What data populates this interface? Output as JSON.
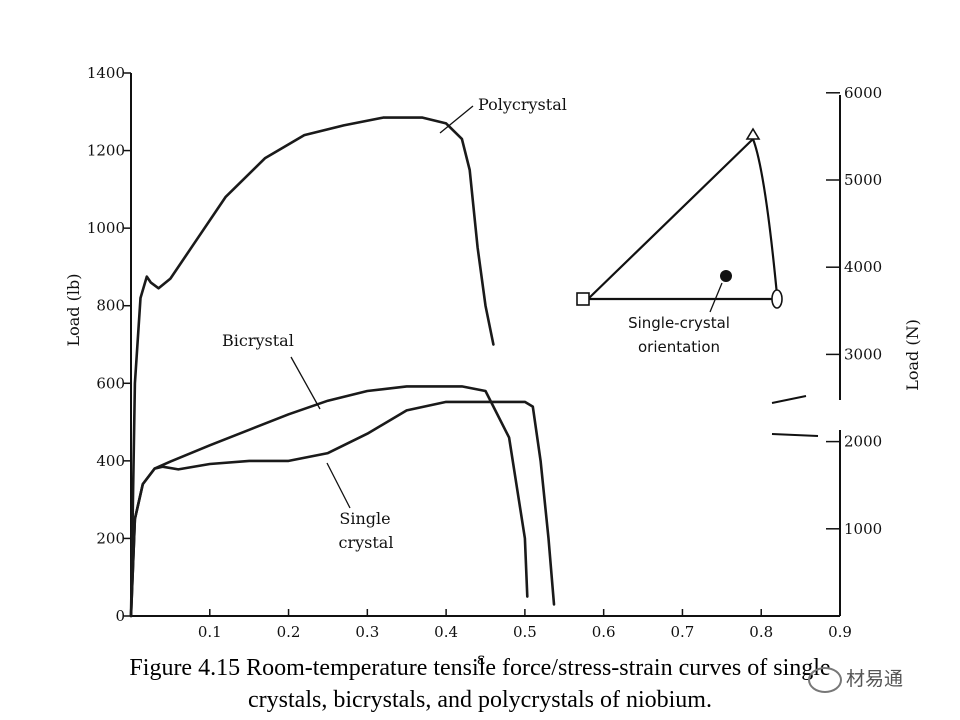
{
  "chart_data": {
    "type": "line",
    "xlabel": "ε",
    "ylabel_left": "Load (lb)",
    "ylabel_right": "Load (N)",
    "xlim": [
      0,
      0.9
    ],
    "ylim_left": [
      0,
      1400
    ],
    "ylim_right": [
      0,
      6227
    ],
    "x_ticks": [
      "0.1",
      "0.2",
      "0.3",
      "0.4",
      "0.5",
      "0.6",
      "0.7",
      "0.8",
      "0.9"
    ],
    "y_ticks_left": [
      "0",
      "200",
      "400",
      "600",
      "800",
      "1000",
      "1200",
      "1400"
    ],
    "y_ticks_right": [
      "1000",
      "2000",
      "3000",
      "4000",
      "5000",
      "6000"
    ],
    "y_ticks_right_values": [
      1000,
      2000,
      3000,
      4000,
      5000,
      6000
    ],
    "grid": false,
    "series": [
      {
        "name": "Polycrystal",
        "points": [
          [
            0,
            0
          ],
          [
            0.005,
            600
          ],
          [
            0.012,
            820
          ],
          [
            0.02,
            875
          ],
          [
            0.025,
            860
          ],
          [
            0.035,
            845
          ],
          [
            0.05,
            870
          ],
          [
            0.08,
            960
          ],
          [
            0.12,
            1080
          ],
          [
            0.17,
            1180
          ],
          [
            0.22,
            1240
          ],
          [
            0.27,
            1265
          ],
          [
            0.32,
            1285
          ],
          [
            0.37,
            1285
          ],
          [
            0.4,
            1270
          ],
          [
            0.42,
            1230
          ],
          [
            0.43,
            1150
          ],
          [
            0.44,
            950
          ],
          [
            0.45,
            800
          ],
          [
            0.46,
            700
          ]
        ]
      },
      {
        "name": "Bicrystal",
        "points": [
          [
            0,
            0
          ],
          [
            0.005,
            250
          ],
          [
            0.015,
            340
          ],
          [
            0.03,
            380
          ],
          [
            0.05,
            398
          ],
          [
            0.1,
            440
          ],
          [
            0.15,
            480
          ],
          [
            0.2,
            520
          ],
          [
            0.25,
            555
          ],
          [
            0.3,
            580
          ],
          [
            0.35,
            592
          ],
          [
            0.42,
            592
          ],
          [
            0.45,
            580
          ],
          [
            0.48,
            460
          ],
          [
            0.5,
            200
          ],
          [
            0.503,
            50
          ]
        ]
      },
      {
        "name": "Single crystal",
        "points": [
          [
            0,
            0
          ],
          [
            0.005,
            250
          ],
          [
            0.015,
            340
          ],
          [
            0.03,
            380
          ],
          [
            0.04,
            385
          ],
          [
            0.06,
            378
          ],
          [
            0.1,
            392
          ],
          [
            0.15,
            400
          ],
          [
            0.2,
            400
          ],
          [
            0.25,
            420
          ],
          [
            0.3,
            470
          ],
          [
            0.35,
            530
          ],
          [
            0.4,
            552
          ],
          [
            0.45,
            552
          ],
          [
            0.5,
            552
          ],
          [
            0.51,
            540
          ],
          [
            0.52,
            400
          ],
          [
            0.53,
            200
          ],
          [
            0.537,
            30
          ]
        ]
      }
    ],
    "annotations": {
      "polycrystal": "Polycrystal",
      "bicrystal": "Bicrystal",
      "single_line1": "Single",
      "single_line2": "crystal",
      "inset_line1": "Single-crystal",
      "inset_line2": "orientation"
    }
  },
  "caption": {
    "line1": "Figure 4.15 Room-temperature tensile force/stress-strain curves of single",
    "line2": "crystals, bicrystals, and polycrystals of niobium."
  },
  "watermark": {
    "text": "材易通",
    "icon": "wechat-icon"
  }
}
